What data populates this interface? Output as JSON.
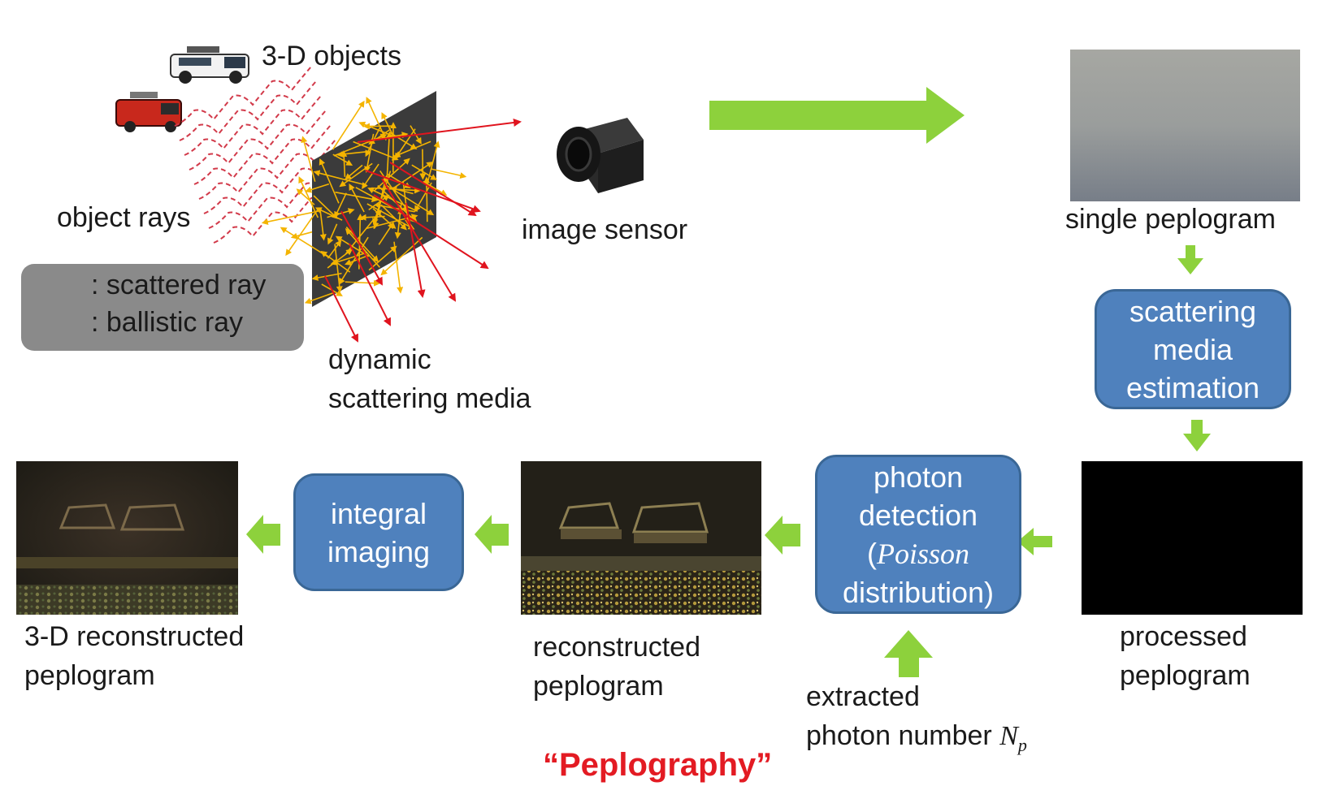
{
  "labels": {
    "objects": "3-D objects",
    "object_rays": "object rays",
    "image_sensor": "image sensor",
    "dynamic_1": "dynamic",
    "dynamic_2": "scattering media",
    "single_peplogram": "single peplogram",
    "processed_1": "processed",
    "processed_2": "peplogram",
    "reconstructed_1": "reconstructed",
    "reconstructed_2": "peplogram",
    "recon3d_1": "3-D reconstructed",
    "recon3d_2": "peplogram",
    "extracted_1": "extracted",
    "extracted_2": "photon number",
    "np_symbol": "N",
    "np_sub": "p"
  },
  "legend": {
    "scattered": ": scattered ray",
    "ballistic": ": ballistic  ray"
  },
  "boxes": {
    "scattering": [
      "scattering",
      "media",
      "estimation"
    ],
    "photon_1": "photon",
    "photon_2": "detection",
    "photon_open": "(",
    "photon_poisson": "Poisson",
    "photon_4": "distribution)",
    "integral": [
      "integral",
      "imaging"
    ]
  },
  "title": "“Peplography”",
  "colors": {
    "arrow_green": "#8dd13c",
    "box_blue": "#4f81bd",
    "scattered_ray": "#f4b400",
    "ballistic_ray": "#e0141e",
    "title_red": "#e31b23"
  }
}
